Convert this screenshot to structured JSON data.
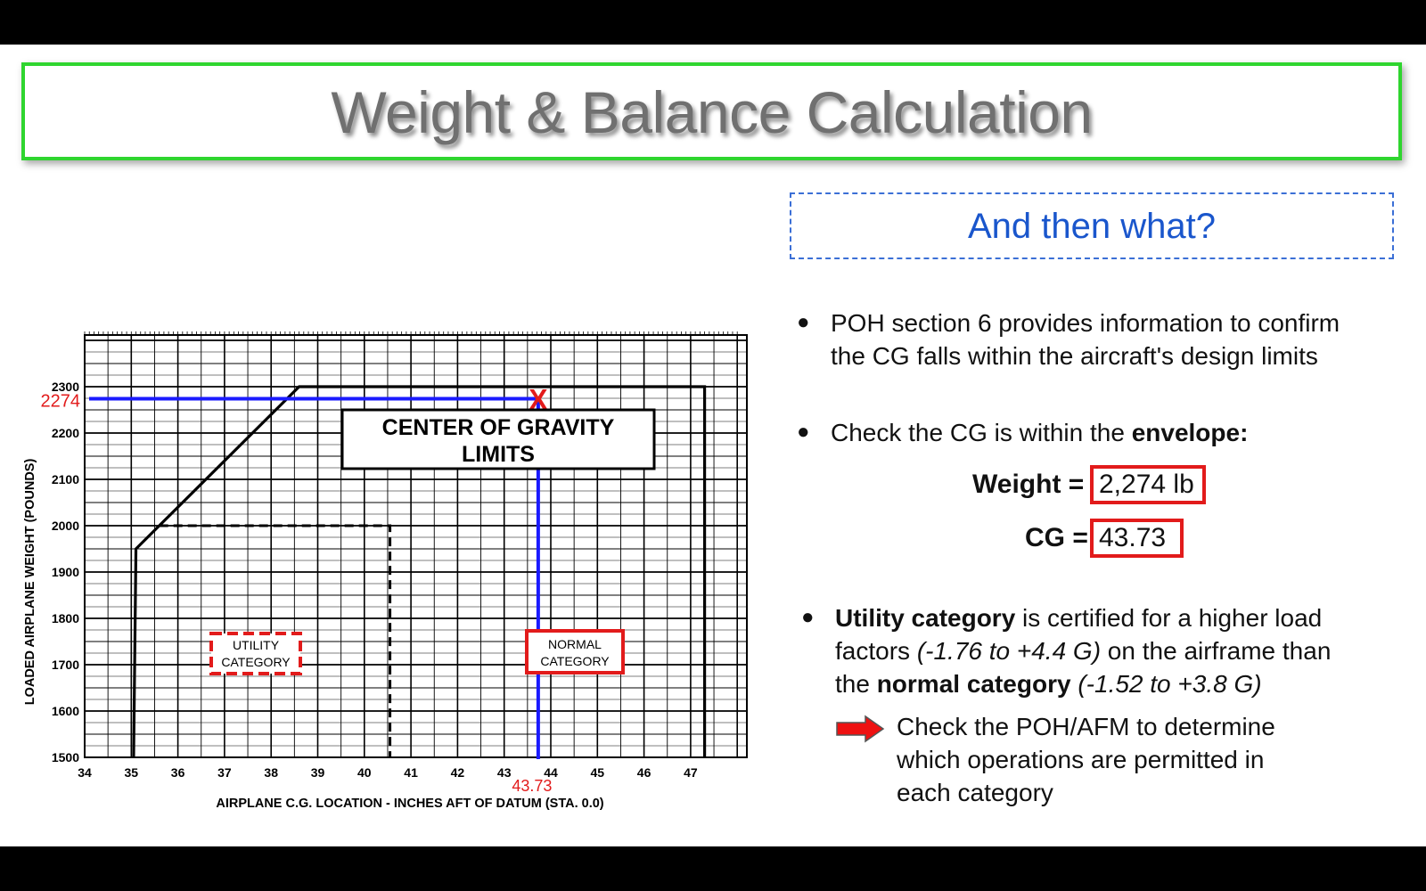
{
  "title": "Weight & Balance Calculation",
  "subtitle": "And then what?",
  "bullets": {
    "b1_line1": "POH section 6 provides information to confirm",
    "b1_line2": "the CG falls within the aircraft's design limits",
    "b2_text": "Check the CG is within the ",
    "b2_bold": "envelope:",
    "b3_bold1": "Utility category",
    "b3_text1": " is certified for a higher load",
    "b3_text2": "factors ",
    "b3_ital1": "(-1.76 to +4.4 G)",
    "b3_text3": " on the airframe than",
    "b3_text4": "the ",
    "b3_bold2": "normal category",
    "b3_ital2": "(-1.52 to +3.8 G)",
    "arrow_line1": "Check the POH/AFM to determine",
    "arrow_line2": "which operations are permitted in",
    "arrow_line3": "each category"
  },
  "values": {
    "weight_label": "Weight =",
    "weight_value": "2,274 lb",
    "cg_label": "CG =",
    "cg_value": "43.73"
  },
  "chart_data": {
    "type": "line",
    "title": "CENTER OF GRAVITY LIMITS",
    "xlabel": "AIRPLANE C.G. LOCATION - INCHES AFT OF DATUM (STA. 0.0)",
    "ylabel": "LOADED AIRPLANE WEIGHT (POUNDS)",
    "xlim": [
      34,
      48
    ],
    "ylim": [
      1500,
      2400
    ],
    "xticks": [
      "34",
      "35",
      "36",
      "37",
      "38",
      "39",
      "40",
      "41",
      "42",
      "43",
      "44",
      "45",
      "46",
      "47"
    ],
    "yticks": [
      "1500",
      "1600",
      "1700",
      "1800",
      "1900",
      "2000",
      "2100",
      "2200",
      "2300"
    ],
    "grid": true,
    "series": [
      {
        "name": "NORMAL CATEGORY",
        "x": [
          35.05,
          35.1,
          38.6,
          47.3,
          47.3
        ],
        "y": [
          1500,
          1950,
          2300,
          2300,
          1500
        ]
      },
      {
        "name": "UTILITY CATEGORY",
        "x": [
          35.6,
          40.55,
          40.55
        ],
        "y": [
          2000,
          2000,
          1500
        ]
      }
    ],
    "labels": {
      "normal": "NORMAL CATEGORY",
      "utility_l1": "UTILITY",
      "utility_l2": "CATEGORY",
      "normal_l1": "NORMAL",
      "normal_l2": "CATEGORY",
      "title_l1": "CENTER OF GRAVITY",
      "title_l2": "LIMITS"
    },
    "marker": {
      "x": 43.73,
      "y": 2274,
      "x_label": "43.73",
      "y_label": "2274",
      "symbol": "X"
    },
    "colors": {
      "marker_lines": "#1a1aff",
      "annotation": "#e21b1b"
    }
  }
}
